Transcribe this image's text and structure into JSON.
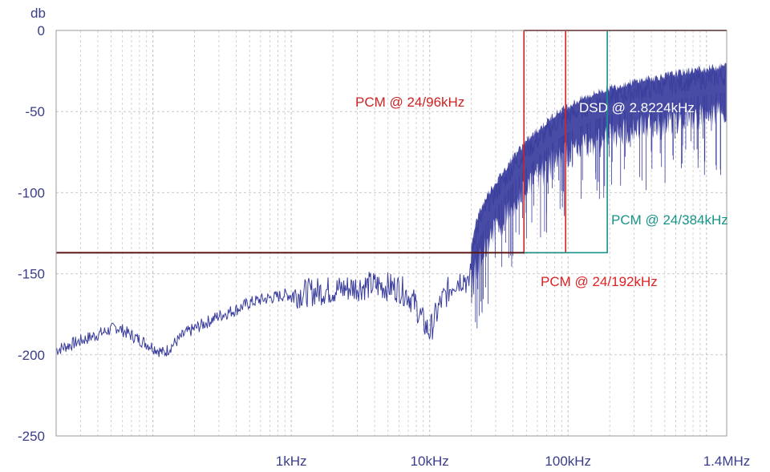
{
  "chart_data": {
    "type": "line",
    "title": "",
    "ylabel": "db",
    "xlabel": "",
    "x_scale": "log",
    "xlim": [
      20,
      1400000
    ],
    "ylim": [
      -250,
      0
    ],
    "grid": true,
    "y_ticks": [
      0,
      -50,
      -100,
      -150,
      -200,
      -250
    ],
    "y_tick_labels": [
      "0",
      "-50",
      "-100",
      "-150",
      "-200",
      "-250"
    ],
    "x_ticks": [
      1000,
      10000,
      100000,
      1400000
    ],
    "x_tick_labels": [
      "1kHz",
      "10kHz",
      "100kHz",
      "1.4MHz"
    ],
    "colors": {
      "spectrum": "#3a3d9c",
      "pcm96": "#cc2222",
      "pcm192": "#dd2222",
      "pcm384": "#17948a",
      "baseline": "#5a1414",
      "dsd_label": "#ffffff",
      "tick": "#3a3d8a",
      "grid": "#c9c9c9"
    },
    "series": [
      {
        "name": "",
        "x": [
          20,
          55,
          120,
          170,
          300,
          400,
          500,
          600,
          700,
          800,
          900,
          1000,
          1200,
          1500,
          2000,
          2500,
          3000,
          4000,
          5000,
          6000,
          7000,
          8000,
          9000,
          10000,
          12000,
          15000,
          18000,
          19000,
          20000,
          21000,
          23000,
          26000,
          30000,
          35000,
          40000,
          50000,
          60000,
          70000,
          80000,
          100000,
          130000,
          170000,
          220000,
          300000,
          400000,
          600000,
          800000,
          1000000,
          1400000
        ],
        "y": [
          -197,
          -183,
          -199,
          -187,
          -176,
          -172,
          -168,
          -166,
          -165,
          -164,
          -163,
          -163,
          -162,
          -161,
          -160,
          -159,
          -158,
          -157,
          -158,
          -159,
          -163,
          -170,
          -180,
          -186,
          -168,
          -155,
          -152,
          -160,
          -140,
          -128,
          -118,
          -108,
          -100,
          -92,
          -84,
          -75,
          -68,
          -63,
          -58,
          -53,
          -48,
          -44,
          -41,
          -38,
          -36,
          -33,
          -31,
          -30,
          -28
        ]
      }
    ],
    "bands": [
      {
        "label": "PCM @ 24/96kHz",
        "freq_hz": 48000,
        "level_db": -137,
        "color": "#cc2222"
      },
      {
        "label": "PCM @ 24/192kHz",
        "freq_hz": 96000,
        "level_db": -137,
        "color": "#dd2222"
      },
      {
        "label": "PCM @ 24/384kHz",
        "freq_hz": 192000,
        "level_db": -137,
        "color": "#17948a"
      }
    ],
    "annotations": [
      {
        "text": "PCM @ 24/96kHz",
        "color": "#cc2222"
      },
      {
        "text": "DSD @ 2.8224kHz",
        "color": "#ffffff"
      },
      {
        "text": "PCM @ 24/384kHz",
        "color": "#17948a"
      },
      {
        "text": "PCM @ 24/192kHz",
        "color": "#dd2222"
      }
    ]
  }
}
